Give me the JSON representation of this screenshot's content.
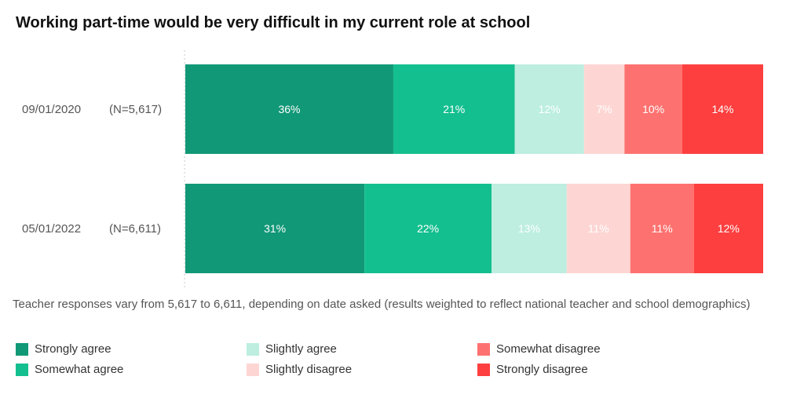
{
  "chart_data": {
    "type": "bar",
    "orientation": "horizontal",
    "stacked": true,
    "percent": true,
    "title": "Working part-time would be very difficult in my current role at school",
    "categories": [
      {
        "date": "09/01/2020",
        "n": "(N=5,617)"
      },
      {
        "date": "05/01/2022",
        "n": "(N=6,611)"
      }
    ],
    "series": [
      {
        "name": "Strongly agree",
        "color": "#119877",
        "label_color": "#ffffff",
        "values": [
          36,
          31
        ]
      },
      {
        "name": "Somewhat agree",
        "color": "#14bf8f",
        "label_color": "#ffffff",
        "values": [
          21,
          22
        ]
      },
      {
        "name": "Slightly agree",
        "color": "#bdeee0",
        "label_color": "#ffffff",
        "values": [
          12,
          13
        ]
      },
      {
        "name": "Slightly disagree",
        "color": "#fdd6d4",
        "label_color": "#ffffff",
        "values": [
          7,
          11
        ]
      },
      {
        "name": "Somewhat disagree",
        "color": "#fd7270",
        "label_color": "#ffffff",
        "values": [
          10,
          11
        ]
      },
      {
        "name": "Strongly disagree",
        "color": "#fd3f3f",
        "label_color": "#ffffff",
        "values": [
          14,
          12
        ]
      }
    ],
    "legend": {
      "position": "bottom",
      "order": [
        0,
        2,
        4,
        1,
        3,
        5
      ]
    },
    "note": "Teacher responses vary from 5,617 to 6,611, depending on date asked (results weighted to reflect national teacher and school demographics)"
  }
}
